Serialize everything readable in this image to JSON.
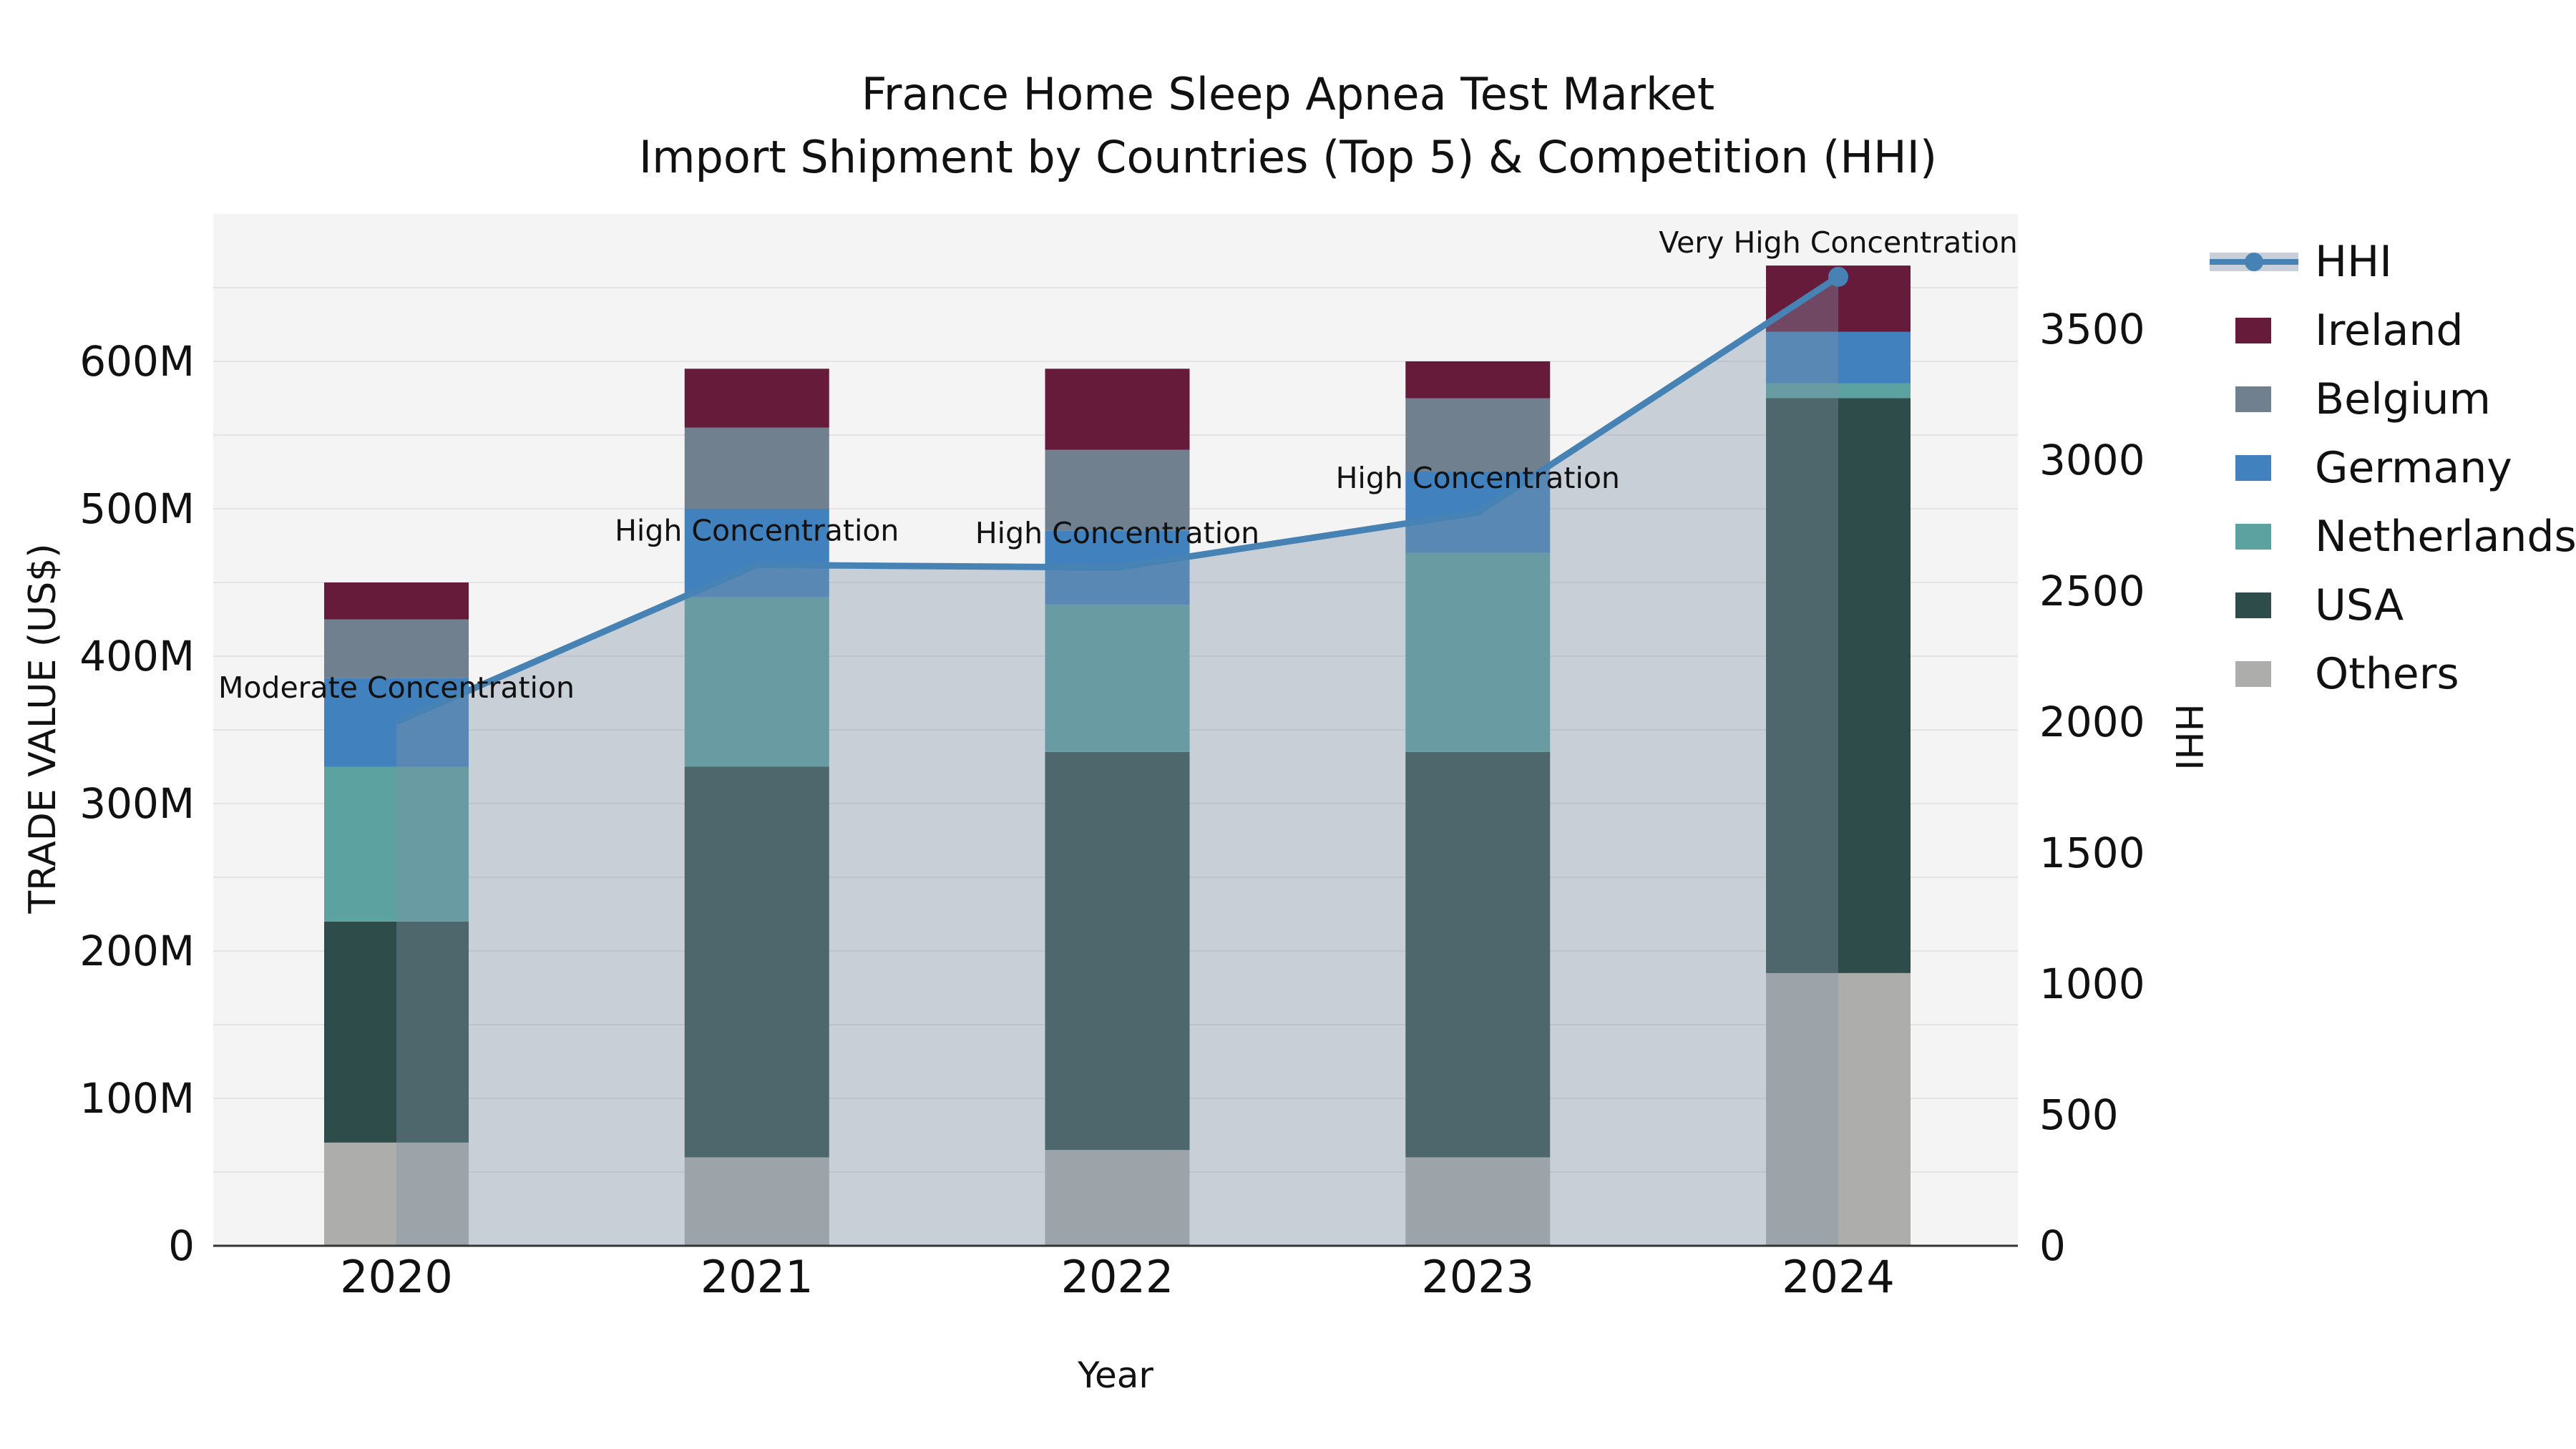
{
  "figure": {
    "title_line1": "France Home Sleep Apnea Test Market",
    "title_line2": "Import Shipment by Countries (Top 5) & Competition (HHI)"
  },
  "chart_data": {
    "type": "combo: stacked bar (trade value) + line (HHI) with shaded area under line",
    "categories": [
      "2020",
      "2021",
      "2022",
      "2023",
      "2024"
    ],
    "unit": "Million US$",
    "series": [
      {
        "name": "Others",
        "color": "#ADADAB",
        "values": [
          70,
          60,
          65,
          60,
          185
        ]
      },
      {
        "name": "USA",
        "color": "#2E4C49",
        "values": [
          150,
          265,
          270,
          275,
          390
        ]
      },
      {
        "name": "Netherlands",
        "color": "#5BA2A0",
        "values": [
          105,
          115,
          100,
          135,
          10
        ]
      },
      {
        "name": "Germany",
        "color": "#4181BD",
        "values": [
          60,
          60,
          50,
          55,
          35
        ]
      },
      {
        "name": "Belgium",
        "color": "#71808F",
        "values": [
          40,
          55,
          55,
          50,
          0
        ]
      },
      {
        "name": "Ireland",
        "color": "#671B3A",
        "values": [
          25,
          40,
          55,
          25,
          45
        ]
      }
    ],
    "bar_totals": [
      450,
      595,
      595,
      600,
      665
    ],
    "line": {
      "name": "HHI",
      "color": "#4682B4",
      "values": [
        2000,
        2600,
        2590,
        2800,
        3700
      ],
      "marker_on_last_point": true
    },
    "area_fill_color_rgba": "rgba(130,146,166,0.38)",
    "annotations": [
      {
        "category": "2020",
        "text": "Moderate Concentration"
      },
      {
        "category": "2021",
        "text": "High Concentration"
      },
      {
        "category": "2022",
        "text": "High Concentration"
      },
      {
        "category": "2023",
        "text": "High Concentration"
      },
      {
        "category": "2024",
        "text": "Very High Concentration"
      }
    ],
    "left_axis": {
      "label": "TRADE VALUE (US$)",
      "tick_labels": [
        "0",
        "100M",
        "200M",
        "300M",
        "400M",
        "500M",
        "600M"
      ],
      "tick_values": [
        0,
        100,
        200,
        300,
        400,
        500,
        600
      ],
      "max": 700
    },
    "right_axis": {
      "label": "HHI",
      "tick_labels": [
        "0",
        "500",
        "1000",
        "1500",
        "2000",
        "2500",
        "3000",
        "3500"
      ],
      "tick_values": [
        0,
        500,
        1000,
        1500,
        2000,
        2500,
        3000,
        3500
      ],
      "max": 3940
    },
    "x_axis": {
      "label": "Year"
    },
    "gridlines": {
      "horizontal_step": 50,
      "color": "#E3E3E7",
      "visible": true,
      "vertical": false
    },
    "plot_background": "#F4F4F5",
    "axis_line_color": "#333333",
    "legend": {
      "position": "right",
      "items": [
        {
          "label": "HHI",
          "type": "line",
          "color": "#4682B4"
        },
        {
          "label": "Ireland",
          "type": "swatch",
          "color": "#671B3A"
        },
        {
          "label": "Belgium",
          "type": "swatch",
          "color": "#71808F"
        },
        {
          "label": "Germany",
          "type": "swatch",
          "color": "#4181BD"
        },
        {
          "label": "Netherlands",
          "type": "swatch",
          "color": "#5BA2A0"
        },
        {
          "label": "USA",
          "type": "swatch",
          "color": "#2E4C49"
        },
        {
          "label": "Others",
          "type": "swatch",
          "color": "#ADADAB"
        }
      ]
    }
  }
}
